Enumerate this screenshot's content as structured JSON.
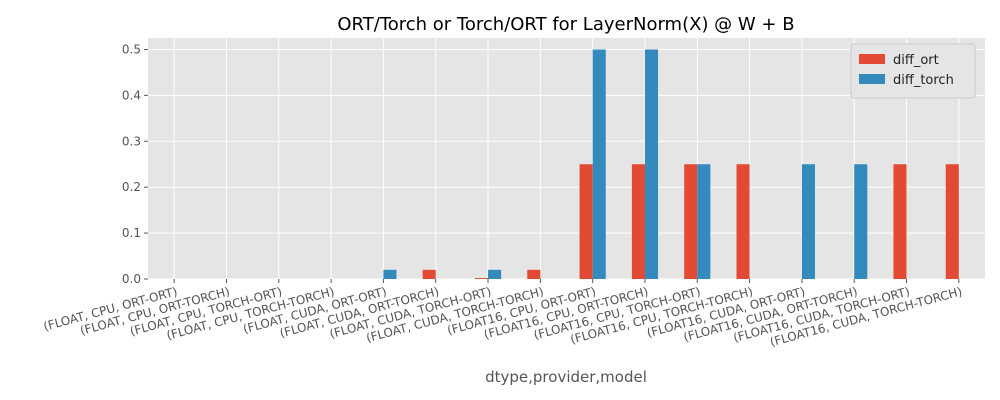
{
  "chart_data": {
    "type": "bar",
    "title": "ORT/Torch or Torch/ORT for LayerNorm(X) @ W + B",
    "x_label": "dtype,provider,model",
    "categories": [
      "(FLOAT, CPU, ORT-ORT)",
      "(FLOAT, CPU, ORT-TORCH)",
      "(FLOAT, CPU, TORCH-ORT)",
      "(FLOAT, CPU, TORCH-TORCH)",
      "(FLOAT, CUDA, ORT-ORT)",
      "(FLOAT, CUDA, ORT-TORCH)",
      "(FLOAT, CUDA, TORCH-ORT)",
      "(FLOAT, CUDA, TORCH-TORCH)",
      "(FLOAT16, CPU, ORT-ORT)",
      "(FLOAT16, CPU, ORT-TORCH)",
      "(FLOAT16, CPU, TORCH-ORT)",
      "(FLOAT16, CPU, TORCH-TORCH)",
      "(FLOAT16, CUDA, ORT-ORT)",
      "(FLOAT16, CUDA, ORT-TORCH)",
      "(FLOAT16, CUDA, TORCH-ORT)",
      "(FLOAT16, CUDA, TORCH-TORCH)"
    ],
    "series": [
      {
        "name": "diff_ort",
        "color": "#E24A33",
        "values": [
          0,
          0,
          0,
          0,
          0,
          0.02,
          0.002,
          0.02,
          0.25,
          0.25,
          0.25,
          0.25,
          0,
          0,
          0.25,
          0.25
        ]
      },
      {
        "name": "diff_torch",
        "color": "#348ABD",
        "values": [
          0,
          0,
          0,
          0,
          0.02,
          0,
          0.02,
          0,
          0.5,
          0.5,
          0.25,
          0,
          0.25,
          0.25,
          0,
          0
        ]
      }
    ],
    "ylim": [
      0,
      0.525
    ],
    "yticks": [
      {
        "value": 0,
        "label": "0.0"
      },
      0.1,
      0.2,
      0.3,
      0.4,
      0.5
    ],
    "grid": true,
    "legend": "upper right"
  }
}
